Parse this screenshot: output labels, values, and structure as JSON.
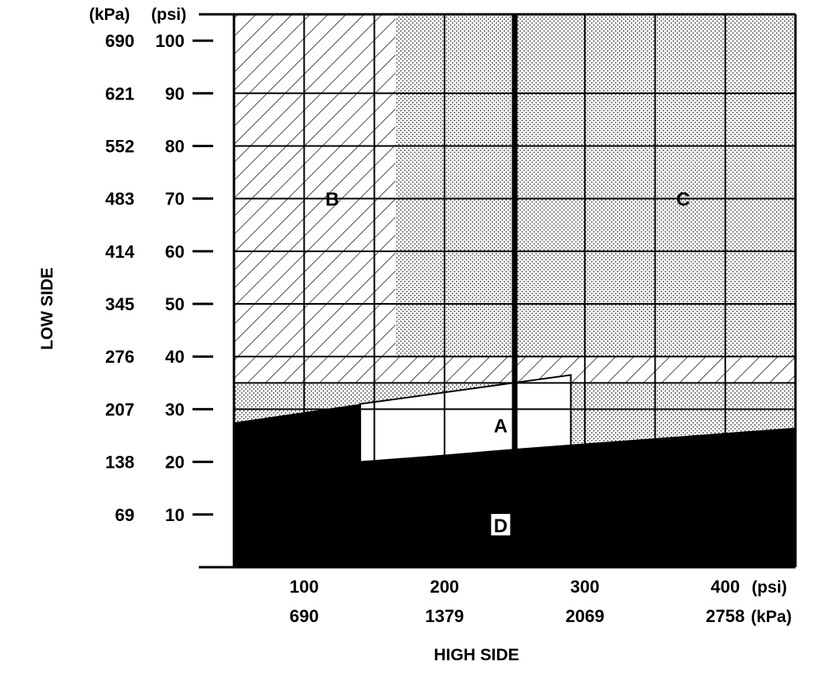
{
  "chart_data": {
    "type": "area",
    "title": "",
    "xlabel": "HIGH SIDE",
    "ylabel": "LOW SIDE",
    "x_unit_primary": "(psi)",
    "x_unit_secondary": "(kPa)",
    "y_unit_primary": "(psi)",
    "y_unit_secondary": "(kPa)",
    "xlim": [
      25,
      450
    ],
    "ylim": [
      0,
      105
    ],
    "x_ticks": [
      {
        "psi": 100,
        "psi_label": "100",
        "kpa_label": "690"
      },
      {
        "psi": 200,
        "psi_label": "200",
        "kpa_label": "1379"
      },
      {
        "psi": 300,
        "psi_label": "300",
        "kpa_label": "2069"
      },
      {
        "psi": 400,
        "psi_label": "400",
        "kpa_label": "2758"
      }
    ],
    "y_ticks": [
      {
        "psi": 100,
        "psi_label": "100",
        "kpa_label": "690"
      },
      {
        "psi": 90,
        "psi_label": "90",
        "kpa_label": "621"
      },
      {
        "psi": 80,
        "psi_label": "80",
        "kpa_label": "552"
      },
      {
        "psi": 70,
        "psi_label": "70",
        "kpa_label": "483"
      },
      {
        "psi": 60,
        "psi_label": "60",
        "kpa_label": "414"
      },
      {
        "psi": 50,
        "psi_label": "50",
        "kpa_label": "345"
      },
      {
        "psi": 40,
        "psi_label": "40",
        "kpa_label": "276"
      },
      {
        "psi": 30,
        "psi_label": "30",
        "kpa_label": "207"
      },
      {
        "psi": 20,
        "psi_label": "20",
        "kpa_label": "138"
      },
      {
        "psi": 10,
        "psi_label": "10",
        "kpa_label": "69"
      }
    ],
    "grid": true,
    "grid_x_psi": [
      25,
      50,
      100,
      150,
      200,
      250,
      300,
      350,
      400,
      450
    ],
    "grid_y_psi": [
      0,
      10,
      20,
      30,
      35,
      40,
      50,
      60,
      70,
      80,
      90,
      105
    ],
    "reference_line_x_psi": 250,
    "regions": [
      {
        "name": "B",
        "fill": "hatch",
        "polygon": [
          [
            50,
            105
          ],
          [
            165,
            105
          ],
          [
            165,
            40
          ],
          [
            50,
            40
          ]
        ]
      },
      {
        "name": "C",
        "fill": "dots",
        "polygon": [
          [
            165,
            105
          ],
          [
            450,
            105
          ],
          [
            450,
            40
          ],
          [
            165,
            40
          ]
        ]
      },
      {
        "name": "B",
        "fill": "hatch",
        "polygon": [
          [
            50,
            40
          ],
          [
            450,
            40
          ],
          [
            450,
            35
          ],
          [
            50,
            35
          ]
        ]
      },
      {
        "name": "C",
        "fill": "dots",
        "polygon": [
          [
            50,
            35
          ],
          [
            450,
            35
          ],
          [
            450,
            0
          ],
          [
            50,
            0
          ]
        ]
      },
      {
        "name": "A",
        "fill": "white",
        "polygon": [
          [
            140,
            31
          ],
          [
            290,
            36.5
          ],
          [
            290,
            23
          ],
          [
            140,
            20
          ]
        ]
      },
      {
        "name": "D",
        "fill": "solid",
        "polygon": [
          [
            50,
            27.5
          ],
          [
            140,
            31
          ],
          [
            140,
            20
          ],
          [
            250,
            22.5
          ],
          [
            450,
            26.5
          ],
          [
            450,
            0
          ],
          [
            50,
            0
          ]
        ]
      }
    ],
    "region_labels": [
      {
        "text": "A",
        "x": 240,
        "y": 27
      },
      {
        "text": "B",
        "x": 120,
        "y": 70
      },
      {
        "text": "C",
        "x": 370,
        "y": 70
      },
      {
        "text": "D",
        "x": 240,
        "y": 8
      }
    ]
  }
}
